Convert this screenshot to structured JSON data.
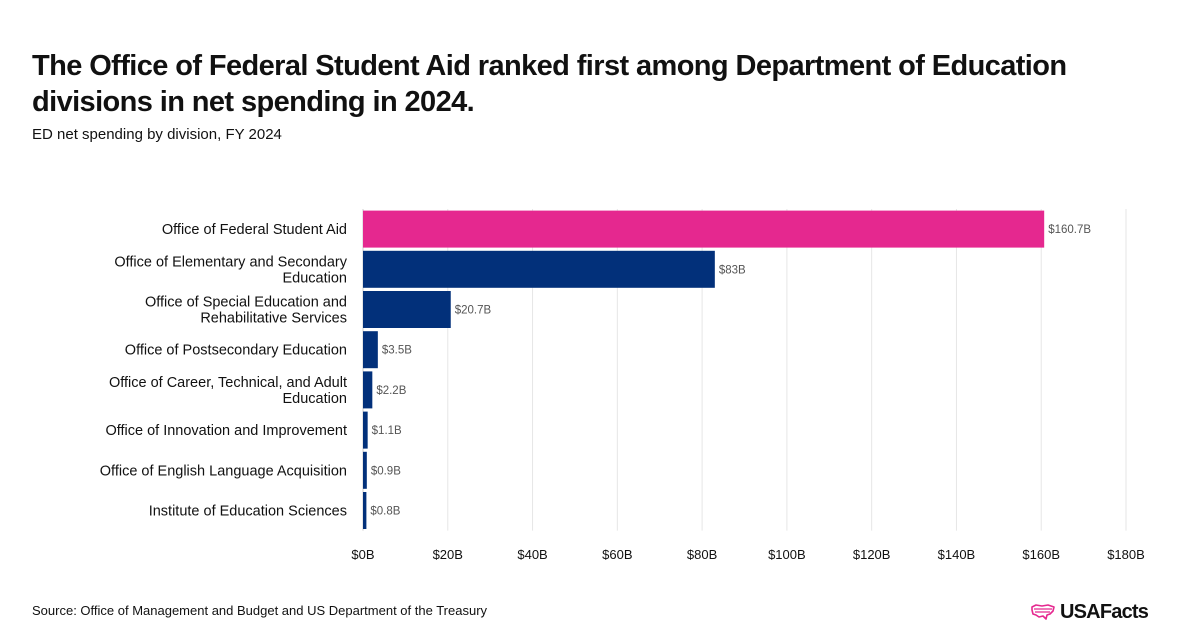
{
  "header": {
    "title": "The Office of Federal Student Aid ranked first among Department of Education divisions in net spending in 2024.",
    "subtitle": "ED net spending by division, FY 2024"
  },
  "footer": {
    "source": "Source: Office of Management and Budget and US Department of the Treasury",
    "brand": "USAFacts"
  },
  "colors": {
    "highlight": "#E5288F",
    "bar": "#02307A",
    "grid": "#E6E6E6",
    "label": "#555555"
  },
  "chart_data": {
    "type": "bar",
    "orientation": "horizontal",
    "categories": [
      "Office of Federal Student Aid",
      "Office of Elementary and Secondary Education",
      "Office of Special Education and Rehabilitative Services",
      "Office of Postsecondary Education",
      "Office of Career, Technical, and Adult Education",
      "Office of Innovation and Improvement",
      "Office of English Language Acquisition",
      "Institute of Education Sciences"
    ],
    "values": [
      160.7,
      83,
      20.7,
      3.5,
      2.2,
      1.1,
      0.9,
      0.8
    ],
    "value_labels": [
      "$160.7B",
      "$83B",
      "$20.7B",
      "$3.5B",
      "$2.2B",
      "$1.1B",
      "$0.9B",
      "$0.8B"
    ],
    "highlight_index": 0,
    "xlim": [
      0,
      180
    ],
    "ticks": [
      0,
      20,
      40,
      60,
      80,
      100,
      120,
      140,
      160,
      180
    ],
    "tick_labels": [
      "$0B",
      "$20B",
      "$40B",
      "$60B",
      "$80B",
      "$100B",
      "$120B",
      "$140B",
      "$160B",
      "$180B"
    ],
    "grid": true,
    "legend": "none"
  }
}
